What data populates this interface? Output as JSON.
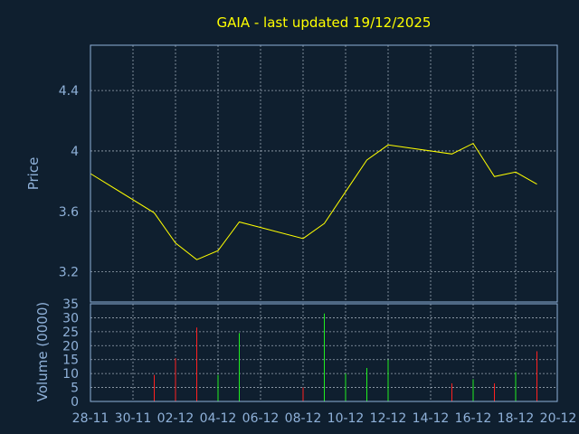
{
  "chart_data": {
    "type": "line",
    "title": "GAIA - last updated 19/12/2025",
    "ylabel": "Price",
    "volume_ylabel": "Volume (0000)",
    "x": [
      "28-11",
      "29-11",
      "30-11",
      "01-12",
      "02-12",
      "03-12",
      "04-12",
      "05-12",
      "06-12",
      "07-12",
      "08-12",
      "09-12",
      "10-12",
      "11-12",
      "12-12",
      "13-12",
      "14-12",
      "15-12",
      "16-12",
      "17-12",
      "18-12",
      "19-12",
      "20-12"
    ],
    "x_tick_labels": [
      "28-11",
      "30-11",
      "02-12",
      "04-12",
      "06-12",
      "08-12",
      "10-12",
      "12-12",
      "14-12",
      "16-12",
      "18-12",
      "20-12"
    ],
    "price_series": [
      {
        "x": "28-11",
        "y": 3.85
      },
      {
        "x": "01-12",
        "y": 3.59
      },
      {
        "x": "02-12",
        "y": 3.39
      },
      {
        "x": "03-12",
        "y": 3.28
      },
      {
        "x": "04-12",
        "y": 3.34
      },
      {
        "x": "05-12",
        "y": 3.53
      },
      {
        "x": "08-12",
        "y": 3.42
      },
      {
        "x": "09-12",
        "y": 3.52
      },
      {
        "x": "11-12",
        "y": 3.94
      },
      {
        "x": "12-12",
        "y": 4.04
      },
      {
        "x": "15-12",
        "y": 3.98
      },
      {
        "x": "16-12",
        "y": 4.05
      },
      {
        "x": "17-12",
        "y": 3.83
      },
      {
        "x": "18-12",
        "y": 3.86
      },
      {
        "x": "19-12",
        "y": 3.78
      }
    ],
    "price_ylim": [
      3.0,
      4.7
    ],
    "price_yticks": [
      "3.2",
      "3.6",
      "4",
      "4.4"
    ],
    "volume_series": [
      {
        "x": "01-12",
        "value": 9.5,
        "color": "#ff2020"
      },
      {
        "x": "02-12",
        "value": 15.5,
        "color": "#ff2020"
      },
      {
        "x": "03-12",
        "value": 26.5,
        "color": "#ff2020"
      },
      {
        "x": "04-12",
        "value": 9.5,
        "color": "#20ee20"
      },
      {
        "x": "05-12",
        "value": 24.5,
        "color": "#20ee20"
      },
      {
        "x": "08-12",
        "value": 5,
        "color": "#ff2020"
      },
      {
        "x": "09-12",
        "value": 31.5,
        "color": "#20ee20"
      },
      {
        "x": "10-12",
        "value": 10,
        "color": "#20ee20"
      },
      {
        "x": "11-12",
        "value": 12,
        "color": "#20ee20"
      },
      {
        "x": "12-12",
        "value": 15,
        "color": "#20ee20"
      },
      {
        "x": "15-12",
        "value": 6.5,
        "color": "#ff2020"
      },
      {
        "x": "16-12",
        "value": 8,
        "color": "#20ee20"
      },
      {
        "x": "17-12",
        "value": 6.5,
        "color": "#ff2020"
      },
      {
        "x": "18-12",
        "value": 10.5,
        "color": "#20ee20"
      },
      {
        "x": "19-12",
        "value": 18,
        "color": "#ff2020"
      }
    ],
    "volume_ylim": [
      0,
      35
    ],
    "volume_yticks": [
      "0",
      "5",
      "10",
      "15",
      "20",
      "25",
      "30",
      "35"
    ],
    "grid": true,
    "colors": {
      "background": "#0f1f2f",
      "axis": "#8fb1d9",
      "price_line": "#ffff00",
      "title": "#ffff00",
      "up": "#20ee20",
      "down": "#ff2020"
    }
  }
}
